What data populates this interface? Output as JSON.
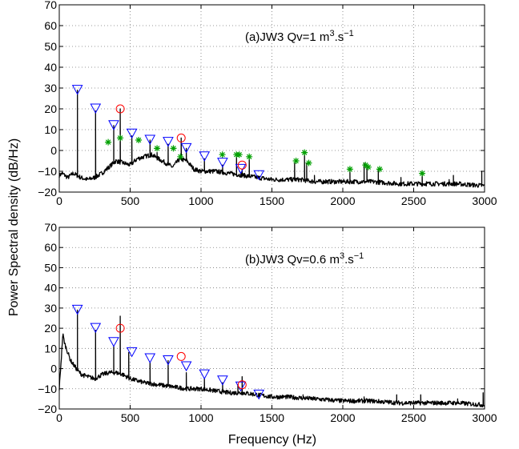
{
  "figure": {
    "ylabel": "Power Spectral density (dB/Hz)",
    "xlabel": "Frequency (Hz)"
  },
  "chart_data": [
    {
      "type": "line",
      "annotation": {
        "main": "(a)JW3 Qv=1 m",
        "sup1": "3",
        "mid": ".s",
        "sup2": "−1"
      },
      "xlim": [
        0,
        3000
      ],
      "ylim": [
        -20,
        70
      ],
      "xticks": [
        0,
        500,
        1000,
        1500,
        2000,
        2500,
        3000
      ],
      "yticks": [
        -20,
        -10,
        0,
        10,
        20,
        30,
        40,
        50,
        60,
        70
      ],
      "xticklabels": [
        "0",
        "500",
        "1000",
        "1500",
        "2000",
        "2500",
        "3000"
      ],
      "yticklabels": [
        "−20",
        "−10",
        "0",
        "10",
        "20",
        "30",
        "40",
        "50",
        "60",
        "70"
      ],
      "grid": "dotted",
      "series_color": "#000000",
      "baseline": [
        [
          0,
          -12
        ],
        [
          20,
          -11
        ],
        [
          40,
          -12
        ],
        [
          60,
          -13
        ],
        [
          80,
          -12
        ],
        [
          100,
          -11
        ],
        [
          150,
          -13
        ],
        [
          200,
          -14
        ],
        [
          250,
          -13
        ],
        [
          300,
          -11
        ],
        [
          350,
          -8
        ],
        [
          400,
          -5
        ],
        [
          450,
          -6
        ],
        [
          500,
          -7
        ],
        [
          550,
          -4
        ],
        [
          600,
          -3
        ],
        [
          650,
          -2
        ],
        [
          700,
          -4
        ],
        [
          750,
          -6
        ],
        [
          800,
          -8
        ],
        [
          850,
          -4
        ],
        [
          900,
          -5
        ],
        [
          950,
          -9
        ],
        [
          1000,
          -10
        ],
        [
          1100,
          -10
        ],
        [
          1200,
          -11
        ],
        [
          1300,
          -12
        ],
        [
          1400,
          -13
        ],
        [
          1500,
          -14
        ],
        [
          1600,
          -14
        ],
        [
          1700,
          -14
        ],
        [
          1800,
          -15
        ],
        [
          1900,
          -15
        ],
        [
          2000,
          -15
        ],
        [
          2200,
          -15
        ],
        [
          2400,
          -16
        ],
        [
          2600,
          -16
        ],
        [
          2800,
          -16
        ],
        [
          3000,
          -17
        ]
      ],
      "peaks": [
        [
          128,
          29
        ],
        [
          256,
          19
        ],
        [
          384,
          12
        ],
        [
          430,
          20
        ],
        [
          512,
          7
        ],
        [
          640,
          5
        ],
        [
          690,
          -1
        ],
        [
          768,
          3
        ],
        [
          860,
          6
        ],
        [
          896,
          1
        ],
        [
          1024,
          -4
        ],
        [
          1152,
          -7
        ],
        [
          1250,
          -3
        ],
        [
          1290,
          -9
        ],
        [
          1340,
          -4
        ],
        [
          1408,
          -13
        ],
        [
          1660,
          -6
        ],
        [
          1730,
          -2
        ],
        [
          1745,
          -6
        ],
        [
          1800,
          -12
        ],
        [
          1880,
          -14
        ],
        [
          2050,
          -9
        ],
        [
          2150,
          -6
        ],
        [
          2170,
          -7
        ],
        [
          2250,
          -9
        ],
        [
          2410,
          -13
        ],
        [
          2560,
          -11
        ],
        [
          2590,
          -15
        ],
        [
          2750,
          -14
        ],
        [
          2780,
          -12
        ],
        [
          2980,
          -10
        ]
      ],
      "markers": {
        "triangle": {
          "color": "#0000ff",
          "points": [
            [
              128,
              29
            ],
            [
              256,
              20
            ],
            [
              384,
              12
            ],
            [
              512,
              8
            ],
            [
              640,
              5
            ],
            [
              768,
              4
            ],
            [
              896,
              1
            ],
            [
              1024,
              -3
            ],
            [
              1152,
              -6
            ],
            [
              1280,
              -9
            ],
            [
              1408,
              -12
            ]
          ]
        },
        "circle": {
          "color": "#ff0000",
          "points": [
            [
              430,
              20
            ],
            [
              860,
              6
            ],
            [
              1290,
              -7
            ]
          ]
        },
        "star": {
          "color": "#00a000",
          "points": [
            [
              345,
              4
            ],
            [
              430,
              6
            ],
            [
              560,
              5
            ],
            [
              690,
              1
            ],
            [
              805,
              1
            ],
            [
              855,
              -3
            ],
            [
              1150,
              -2
            ],
            [
              1250,
              -2
            ],
            [
              1270,
              -2
            ],
            [
              1340,
              -3
            ],
            [
              1670,
              -5
            ],
            [
              1730,
              -1
            ],
            [
              1760,
              -6
            ],
            [
              2050,
              -9
            ],
            [
              2160,
              -7
            ],
            [
              2180,
              -8
            ],
            [
              2260,
              -9
            ],
            [
              2560,
              -11
            ]
          ]
        }
      }
    },
    {
      "type": "line",
      "annotation": {
        "main": "(b)JW3 Qv=0.6 m",
        "sup1": "3",
        "mid": ".s",
        "sup2": "−1"
      },
      "xlim": [
        0,
        3000
      ],
      "ylim": [
        -20,
        70
      ],
      "xticks": [
        0,
        500,
        1000,
        1500,
        2000,
        2500,
        3000
      ],
      "yticks": [
        -20,
        -10,
        0,
        10,
        20,
        30,
        40,
        50,
        60,
        70
      ],
      "xticklabels": [
        "0",
        "500",
        "1000",
        "1500",
        "2000",
        "2500",
        "3000"
      ],
      "yticklabels": [
        "−20",
        "−10",
        "0",
        "10",
        "20",
        "30",
        "40",
        "50",
        "60",
        "70"
      ],
      "grid": "dotted",
      "series_color": "#000000",
      "baseline": [
        [
          0,
          -10
        ],
        [
          15,
          6
        ],
        [
          25,
          17
        ],
        [
          40,
          12
        ],
        [
          60,
          8
        ],
        [
          80,
          4
        ],
        [
          100,
          2
        ],
        [
          130,
          -1
        ],
        [
          160,
          -3
        ],
        [
          200,
          -4
        ],
        [
          250,
          -5
        ],
        [
          300,
          -3
        ],
        [
          350,
          -2
        ],
        [
          400,
          -2
        ],
        [
          450,
          -3
        ],
        [
          500,
          -5
        ],
        [
          550,
          -6
        ],
        [
          600,
          -7
        ],
        [
          700,
          -8
        ],
        [
          800,
          -9
        ],
        [
          900,
          -10
        ],
        [
          1000,
          -10
        ],
        [
          1100,
          -11
        ],
        [
          1200,
          -12
        ],
        [
          1300,
          -12
        ],
        [
          1400,
          -13
        ],
        [
          1500,
          -14
        ],
        [
          1600,
          -14
        ],
        [
          1800,
          -15
        ],
        [
          2000,
          -16
        ],
        [
          2200,
          -16
        ],
        [
          2400,
          -17
        ],
        [
          2600,
          -17
        ],
        [
          2800,
          -17
        ],
        [
          3000,
          -18
        ]
      ],
      "peaks": [
        [
          128,
          29
        ],
        [
          256,
          19
        ],
        [
          384,
          11
        ],
        [
          430,
          26
        ],
        [
          490,
          8
        ],
        [
          640,
          3
        ],
        [
          768,
          4
        ],
        [
          896,
          -2
        ],
        [
          1024,
          -5
        ],
        [
          1152,
          -7
        ],
        [
          1260,
          -8
        ],
        [
          1290,
          -4
        ],
        [
          1350,
          -12
        ],
        [
          1408,
          -14
        ],
        [
          1540,
          -14
        ],
        [
          1720,
          -13
        ],
        [
          2150,
          -14
        ],
        [
          2380,
          -13
        ],
        [
          2550,
          -13
        ],
        [
          2810,
          -15
        ],
        [
          2990,
          -12
        ]
      ],
      "markers": {
        "triangle": {
          "color": "#0000ff",
          "points": [
            [
              128,
              29
            ],
            [
              256,
              20
            ],
            [
              384,
              13
            ],
            [
              512,
              8
            ],
            [
              640,
              5
            ],
            [
              768,
              4
            ],
            [
              896,
              1
            ],
            [
              1024,
              -3
            ],
            [
              1152,
              -6
            ],
            [
              1280,
              -9
            ],
            [
              1408,
              -13
            ]
          ]
        },
        "circle": {
          "color": "#ff0000",
          "points": [
            [
              430,
              20
            ],
            [
              860,
              6
            ],
            [
              1290,
              -8
            ]
          ]
        }
      }
    }
  ]
}
